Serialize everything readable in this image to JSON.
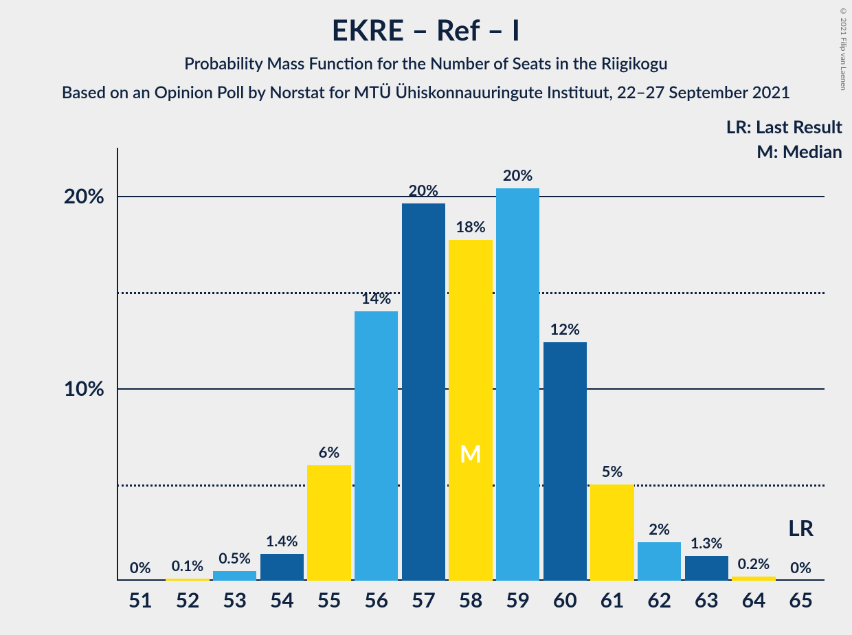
{
  "title": "EKRE – Ref – I",
  "subtitle": "Probability Mass Function for the Number of Seats in the Riigikogu",
  "source_line": "Based on an Opinion Poll by Norstat for MTÜ Ühiskonnauuringute Instituut, 22–27 September 2021",
  "copyright": "© 2021 Filip van Laenen",
  "legend": {
    "lr": "LR: Last Result",
    "m": "M: Median"
  },
  "chart": {
    "type": "bar",
    "background_color": "#eeeeee",
    "text_color": "#0e2240",
    "axis_color": "#0e2240",
    "grid_solid_color": "#0e2240",
    "grid_dotted_color": "#0e2240",
    "ylim": [
      0,
      22.5
    ],
    "y_major_ticks": [
      10,
      20
    ],
    "y_minor_ticks": [
      5,
      15
    ],
    "ytick_labels": {
      "10": "10%",
      "20": "20%"
    },
    "x_categories": [
      51,
      52,
      53,
      54,
      55,
      56,
      57,
      58,
      59,
      60,
      61,
      62,
      63,
      64,
      65
    ],
    "bar_width_ratio": 0.92,
    "colors": {
      "dark_blue": "#0f5f9e",
      "light_blue": "#33a9e3",
      "yellow": "#ffde0a"
    },
    "bars": [
      {
        "x": 51,
        "value": 0.0,
        "label": "0%",
        "color": "dark_blue"
      },
      {
        "x": 52,
        "value": 0.1,
        "label": "0.1%",
        "color": "yellow"
      },
      {
        "x": 53,
        "value": 0.5,
        "label": "0.5%",
        "color": "light_blue"
      },
      {
        "x": 54,
        "value": 1.4,
        "label": "1.4%",
        "color": "dark_blue"
      },
      {
        "x": 55,
        "value": 6.0,
        "label": "6%",
        "color": "yellow"
      },
      {
        "x": 56,
        "value": 14.0,
        "label": "14%",
        "color": "light_blue"
      },
      {
        "x": 57,
        "value": 19.6,
        "label": "20%",
        "color": "dark_blue"
      },
      {
        "x": 58,
        "value": 17.7,
        "label": "18%",
        "color": "yellow",
        "is_median": true
      },
      {
        "x": 59,
        "value": 20.4,
        "label": "20%",
        "color": "light_blue"
      },
      {
        "x": 60,
        "value": 12.4,
        "label": "12%",
        "color": "dark_blue"
      },
      {
        "x": 61,
        "value": 5.0,
        "label": "5%",
        "color": "yellow"
      },
      {
        "x": 62,
        "value": 2.0,
        "label": "2%",
        "color": "light_blue"
      },
      {
        "x": 63,
        "value": 1.3,
        "label": "1.3%",
        "color": "dark_blue"
      },
      {
        "x": 64,
        "value": 0.2,
        "label": "0.2%",
        "color": "yellow"
      },
      {
        "x": 65,
        "value": 0.0,
        "label": "0%",
        "color": "light_blue",
        "is_lr": true
      }
    ],
    "median_symbol": "M",
    "lr_symbol": "LR",
    "title_fontsize": 42,
    "subtitle_fontsize": 24,
    "tick_fontsize": 30,
    "barlabel_fontsize": 22
  }
}
